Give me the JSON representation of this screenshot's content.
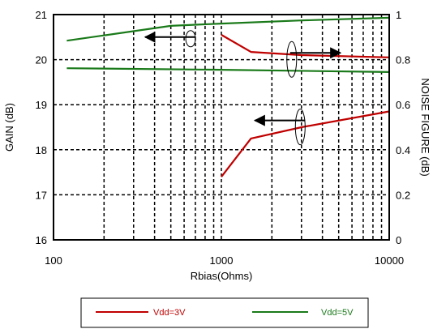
{
  "chart_data": {
    "type": "line",
    "xscale": "log",
    "xlim": [
      100,
      10000
    ],
    "ylim_left": [
      16,
      21
    ],
    "ylim_right": [
      0,
      1
    ],
    "xlabel": "Rbias(Ohms)",
    "ylabel_left": "GAIN (dB)",
    "ylabel_right": "NOISE FIGURE (dB)",
    "x_ticks": [
      "100",
      "1000",
      "10000"
    ],
    "y_left_ticks": [
      "16",
      "17",
      "18",
      "19",
      "20",
      "21"
    ],
    "y_right_ticks": [
      "0",
      "0.2",
      "0.4",
      "0.6",
      "0.8",
      "1"
    ],
    "grid": true,
    "legend_position": "bottom",
    "colors": {
      "vdd3": "#c00000",
      "vdd5": "#1a7a1a"
    },
    "series": [
      {
        "name": "Vdd=3V",
        "quantity": "gain",
        "axis": "left",
        "color": "#c00000",
        "points": [
          [
            1000,
            20.55
          ],
          [
            1500,
            20.17
          ],
          [
            3000,
            20.1
          ],
          [
            10000,
            20.05
          ]
        ]
      },
      {
        "name": "Vdd=3V",
        "quantity": "noise figure",
        "axis": "right",
        "color": "#c00000",
        "points": [
          [
            1000,
            0.28
          ],
          [
            1500,
            0.45
          ],
          [
            3000,
            0.5
          ],
          [
            10000,
            0.57
          ]
        ]
      },
      {
        "name": "Vdd=5V",
        "quantity": "gain",
        "axis": "left",
        "color": "#1a7a1a",
        "points": [
          [
            120,
            20.42
          ],
          [
            500,
            20.75
          ],
          [
            1000,
            20.8
          ],
          [
            3000,
            20.87
          ],
          [
            10000,
            20.93
          ]
        ]
      },
      {
        "name": "Vdd=5V",
        "quantity": "noise figure",
        "axis": "right",
        "color": "#1a7a1a",
        "points": [
          [
            120,
            0.762
          ],
          [
            1000,
            0.755
          ],
          [
            10000,
            0.745
          ]
        ]
      }
    ],
    "annotations": [
      {
        "type": "axis-pointer",
        "points_to": "left",
        "near_x": 600,
        "near_y_right": 0.9
      },
      {
        "type": "axis-pointer",
        "points_to": "right",
        "near_x": 3000,
        "near_y_right": 0.83
      },
      {
        "type": "axis-pointer",
        "points_to": "left",
        "near_x": 2700,
        "near_y_right": 0.53
      }
    ]
  }
}
